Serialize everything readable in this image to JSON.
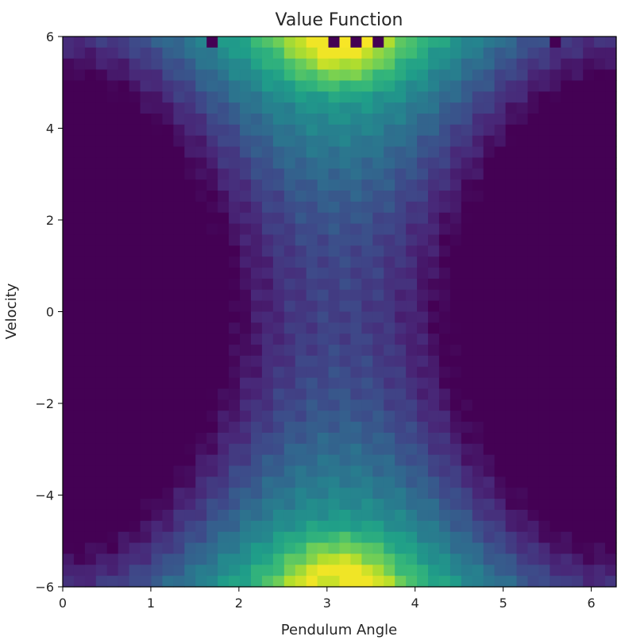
{
  "chart_data": {
    "type": "heatmap",
    "title": "Value Function",
    "xlabel": "Pendulum Angle",
    "ylabel": "Velocity",
    "xlim": [
      0,
      6.283
    ],
    "ylim": [
      -6,
      6
    ],
    "xticks": [
      0,
      1,
      2,
      3,
      4,
      5,
      6
    ],
    "yticks": [
      -6,
      -4,
      -2,
      0,
      2,
      4,
      6
    ],
    "xtick_labels": [
      "0",
      "1",
      "2",
      "3",
      "4",
      "5",
      "6"
    ],
    "ytick_labels": [
      "−6",
      "−4",
      "−2",
      "0",
      "2",
      "4",
      "6"
    ],
    "grid": {
      "nx": 50,
      "ny": 50
    },
    "colormap": "viridis",
    "colors": [
      "#440154",
      "#482878",
      "#3e4989",
      "#31688e",
      "#26828e",
      "#1f9e89",
      "#35b779",
      "#6ece58",
      "#b5de2b",
      "#fde725"
    ]
  }
}
